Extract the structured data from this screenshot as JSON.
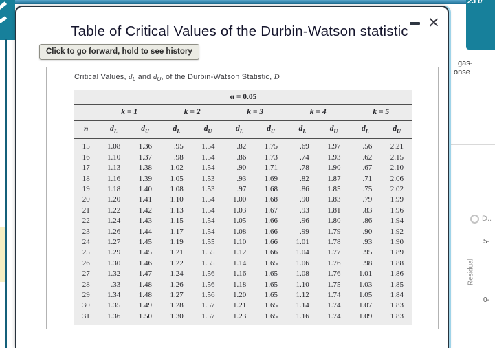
{
  "window": {
    "title": "Table of Critical Values of the Durbin-Watson statistic",
    "close_glyph": "✕"
  },
  "tooltip": {
    "text": "Click to go forward, hold to see history"
  },
  "colors": {
    "teal": "#17809b",
    "dark_teal_line": "#14607a",
    "blue_glow": "#9fd3e8",
    "table_bg": "#ececec",
    "tooltip_bg": "#ebebe4",
    "yellow_block": "#f6eec2"
  },
  "background_app": {
    "top_right_text": "23 0",
    "right_panel": {
      "line1": "gas-",
      "line2": "onse",
      "legend_label": "D..",
      "tick_top": "5-",
      "tick_bottom": "0-",
      "y_axis_label": "Residual"
    }
  },
  "table": {
    "caption": {
      "p1": "Critical Values, ",
      "v1": "d",
      "s1": "L",
      "p2": " and ",
      "v2": "d",
      "s2": "U",
      "p3": ", of the Durbin-Watson Statistic, ",
      "v3": "D"
    },
    "alpha_header": "α = 0.05",
    "k_headers": [
      "k = 1",
      "k = 2",
      "k = 3",
      "k = 4",
      "k = 5"
    ],
    "n_header": "n",
    "d_headers": [
      [
        "d",
        "L"
      ],
      [
        "d",
        "U"
      ],
      [
        "d",
        "L"
      ],
      [
        "d",
        "U"
      ],
      [
        "d",
        "L"
      ],
      [
        "d",
        "U"
      ],
      [
        "d",
        "L"
      ],
      [
        "d",
        "U"
      ],
      [
        "d",
        "L"
      ],
      [
        "d",
        "U"
      ]
    ],
    "rows": [
      [
        "15",
        "1.08",
        "1.36",
        ".95",
        "1.54",
        ".82",
        "1.75",
        ".69",
        "1.97",
        ".56",
        "2.21"
      ],
      [
        "16",
        "1.10",
        "1.37",
        ".98",
        "1.54",
        ".86",
        "1.73",
        ".74",
        "1.93",
        ".62",
        "2.15"
      ],
      [
        "17",
        "1.13",
        "1.38",
        "1.02",
        "1.54",
        ".90",
        "1.71",
        ".78",
        "1.90",
        ".67",
        "2.10"
      ],
      [
        "18",
        "1.16",
        "1.39",
        "1.05",
        "1.53",
        ".93",
        "1.69",
        ".82",
        "1.87",
        ".71",
        "2.06"
      ],
      [
        "19",
        "1.18",
        "1.40",
        "1.08",
        "1.53",
        ".97",
        "1.68",
        ".86",
        "1.85",
        ".75",
        "2.02"
      ],
      [
        "20",
        "1.20",
        "1.41",
        "1.10",
        "1.54",
        "1.00",
        "1.68",
        ".90",
        "1.83",
        ".79",
        "1.99"
      ],
      [
        "21",
        "1.22",
        "1.42",
        "1.13",
        "1.54",
        "1.03",
        "1.67",
        ".93",
        "1.81",
        ".83",
        "1.96"
      ],
      [
        "22",
        "1.24",
        "1.43",
        "1.15",
        "1.54",
        "1.05",
        "1.66",
        ".96",
        "1.80",
        ".86",
        "1.94"
      ],
      [
        "23",
        "1.26",
        "1.44",
        "1.17",
        "1.54",
        "1.08",
        "1.66",
        ".99",
        "1.79",
        ".90",
        "1.92"
      ],
      [
        "24",
        "1.27",
        "1.45",
        "1.19",
        "1.55",
        "1.10",
        "1.66",
        "1.01",
        "1.78",
        ".93",
        "1.90"
      ],
      [
        "25",
        "1.29",
        "1.45",
        "1.21",
        "1.55",
        "1.12",
        "1.66",
        "1.04",
        "1.77",
        ".95",
        "1.89"
      ],
      [
        "26",
        "1.30",
        "1.46",
        "1.22",
        "1.55",
        "1.14",
        "1.65",
        "1.06",
        "1.76",
        ".98",
        "1.88"
      ],
      [
        "27",
        "1.32",
        "1.47",
        "1.24",
        "1.56",
        "1.16",
        "1.65",
        "1.08",
        "1.76",
        "1.01",
        "1.86"
      ],
      [
        "28",
        ".33",
        "1.48",
        "1.26",
        "1.56",
        "1.18",
        "1.65",
        "1.10",
        "1.75",
        "1.03",
        "1.85"
      ],
      [
        "29",
        "1.34",
        "1.48",
        "1.27",
        "1.56",
        "1.20",
        "1.65",
        "1.12",
        "1.74",
        "1.05",
        "1.84"
      ],
      [
        "30",
        "1.35",
        "1.49",
        "1.28",
        "1.57",
        "1.21",
        "1.65",
        "1.14",
        "1.74",
        "1.07",
        "1.83"
      ],
      [
        "31",
        "1.36",
        "1.50",
        "1.30",
        "1.57",
        "1.23",
        "1.65",
        "1.16",
        "1.74",
        "1.09",
        "1.83"
      ]
    ]
  }
}
